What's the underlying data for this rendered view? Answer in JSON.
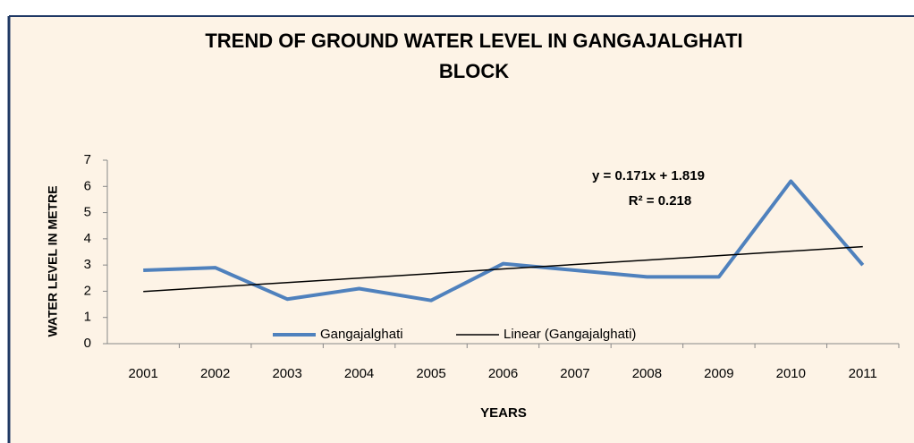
{
  "chart_data": {
    "type": "line",
    "title": "TREND OF GROUND WATER LEVEL IN GANGAJALGHATI",
    "title_line2": "BLOCK",
    "ylabel": "WATER LEVEL IN METRE",
    "xlabel": "YEARS",
    "categories": [
      "2001",
      "2002",
      "2003",
      "2004",
      "2005",
      "2006",
      "2007",
      "2008",
      "2009",
      "2010",
      "2011"
    ],
    "series": [
      {
        "name": "Gangajalghati",
        "color": "#4f81bd",
        "values": [
          2.8,
          2.9,
          1.7,
          2.1,
          1.65,
          3.05,
          2.8,
          2.55,
          2.55,
          6.2,
          3.0
        ]
      },
      {
        "name": "Linear (Gangajalghati)",
        "color": "#000000",
        "values": [
          1.99,
          2.16,
          2.33,
          2.5,
          2.67,
          2.85,
          3.02,
          3.19,
          3.36,
          3.53,
          3.7
        ]
      }
    ],
    "annotations": [
      "y = 0.171x + 1.819",
      "R² = 0.218"
    ],
    "ylim": [
      0,
      7
    ],
    "yticks": [
      0,
      1,
      2,
      3,
      4,
      5,
      6,
      7
    ],
    "grid": false,
    "legend": "bottom"
  }
}
